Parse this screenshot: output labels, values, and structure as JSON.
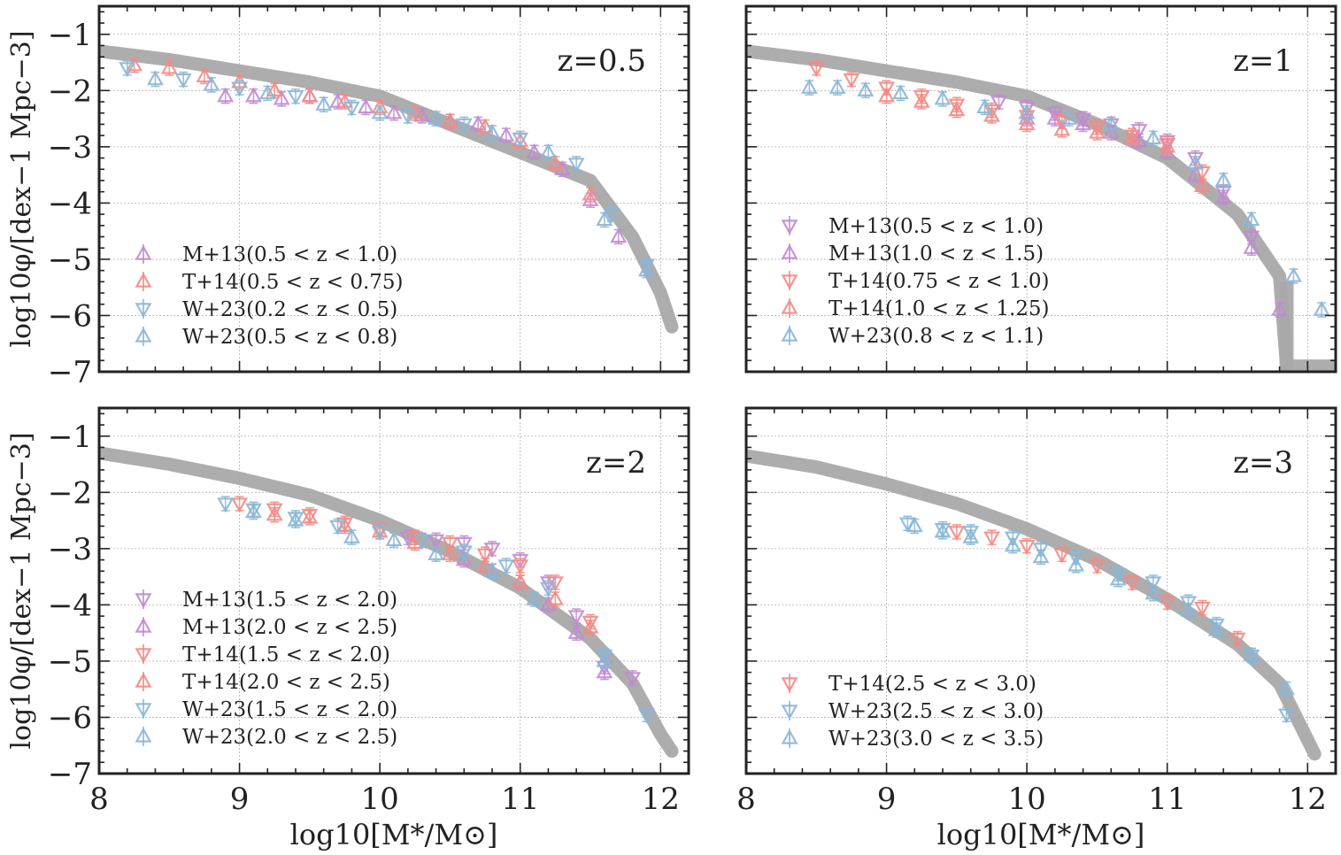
{
  "colors": {
    "M+13": "#c08bd0",
    "T+14": "#f48a84",
    "W+23": "#8ab6d6",
    "model": "#a9a9a9",
    "axes": "#222222",
    "grid": "#b0b0b0"
  },
  "shared": {
    "xlabel": "log10[M*/M⊙]",
    "ylabel": "log10φ/[dex−1 Mpc−3]",
    "xlim": [
      8,
      12.2
    ],
    "ylim": [
      -7,
      -0.5
    ],
    "xticks": [
      8,
      9,
      10,
      11,
      12
    ],
    "yticks": [
      -1,
      -2,
      -3,
      -4,
      -5,
      -6,
      -7
    ]
  },
  "chart_data": [
    {
      "type": "scatter",
      "title": "z=0.5",
      "model": {
        "x": [
          8.0,
          8.5,
          9.0,
          9.5,
          10.0,
          10.5,
          11.0,
          11.5,
          11.8,
          12.0,
          12.08
        ],
        "y": [
          -1.3,
          -1.45,
          -1.65,
          -1.85,
          -2.1,
          -2.6,
          -3.1,
          -3.6,
          -4.6,
          -5.6,
          -6.2
        ]
      },
      "series": [
        {
          "name": "M+13(0.5 < z < 1.0)",
          "survey": "M+13",
          "marker": "up",
          "x": [
            8.9,
            9.1,
            9.3,
            9.5,
            9.7,
            9.9,
            10.1,
            10.3,
            10.5,
            10.7,
            10.9,
            11.1,
            11.3,
            11.5,
            11.7
          ],
          "y": [
            -2.1,
            -2.1,
            -2.15,
            -2.1,
            -2.2,
            -2.3,
            -2.4,
            -2.45,
            -2.55,
            -2.6,
            -2.8,
            -3.1,
            -3.4,
            -3.95,
            -4.6
          ]
        },
        {
          "name": "T+14(0.5 < z < 0.75)",
          "survey": "T+14",
          "marker": "up",
          "x": [
            8.25,
            8.5,
            8.75,
            9.0,
            9.25,
            9.5,
            9.75,
            10.0,
            10.25,
            10.5,
            10.75,
            11.0,
            11.25,
            11.5
          ],
          "y": [
            -1.55,
            -1.6,
            -1.75,
            -1.85,
            -2.0,
            -2.1,
            -2.2,
            -2.3,
            -2.4,
            -2.55,
            -2.65,
            -2.9,
            -3.3,
            -3.85
          ]
        },
        {
          "name": "W+23(0.2 < z < 0.5)",
          "survey": "W+23",
          "marker": "down",
          "x": [
            8.2,
            8.6,
            9.0,
            9.4,
            9.8,
            10.2,
            10.6,
            11.0,
            11.4,
            11.65,
            11.9
          ],
          "y": [
            -1.6,
            -1.8,
            -1.95,
            -2.1,
            -2.3,
            -2.45,
            -2.6,
            -2.85,
            -3.3,
            -4.2,
            -5.1
          ]
        },
        {
          "name": "W+23(0.5 < z < 0.8)",
          "survey": "W+23",
          "marker": "up",
          "x": [
            8.4,
            8.8,
            9.2,
            9.6,
            10.0,
            10.4,
            10.8,
            11.2,
            11.6,
            11.9
          ],
          "y": [
            -1.8,
            -1.9,
            -2.05,
            -2.25,
            -2.4,
            -2.5,
            -2.75,
            -3.1,
            -4.3,
            -5.2
          ]
        }
      ]
    },
    {
      "type": "scatter",
      "title": "z=1",
      "model": {
        "x": [
          8.0,
          8.5,
          9.0,
          9.5,
          10.0,
          10.5,
          11.0,
          11.5,
          11.8,
          11.85,
          12.2
        ],
        "y": [
          -1.3,
          -1.45,
          -1.65,
          -1.85,
          -2.1,
          -2.6,
          -3.2,
          -4.2,
          -5.3,
          -6.9,
          -6.9
        ]
      },
      "series": [
        {
          "name": "M+13(0.5 < z < 1.0)",
          "survey": "M+13",
          "marker": "down",
          "x": [
            9.8,
            10.0,
            10.2,
            10.4,
            10.6,
            10.8,
            11.0,
            11.2,
            11.4,
            11.6
          ],
          "y": [
            -2.2,
            -2.3,
            -2.4,
            -2.5,
            -2.6,
            -2.7,
            -2.9,
            -3.2,
            -3.8,
            -4.6
          ]
        },
        {
          "name": "M+13(1.0 < z < 1.5)",
          "survey": "M+13",
          "marker": "up",
          "x": [
            10.0,
            10.2,
            10.4,
            10.6,
            10.8,
            11.0,
            11.2,
            11.4,
            11.6,
            11.8
          ],
          "y": [
            -2.5,
            -2.5,
            -2.6,
            -2.75,
            -2.9,
            -3.1,
            -3.5,
            -3.9,
            -4.8,
            -5.9
          ]
        },
        {
          "name": "T+14(0.75 < z < 1.0)",
          "survey": "T+14",
          "marker": "down",
          "x": [
            8.5,
            8.75,
            9.0,
            9.25,
            9.5,
            9.75,
            10.0,
            10.25,
            10.5,
            10.75,
            11.0,
            11.25
          ],
          "y": [
            -1.6,
            -1.8,
            -1.95,
            -2.1,
            -2.25,
            -2.35,
            -2.45,
            -2.55,
            -2.65,
            -2.8,
            -2.95,
            -3.45
          ]
        },
        {
          "name": "T+14(1.0 < z < 1.25)",
          "survey": "T+14",
          "marker": "up",
          "x": [
            9.0,
            9.25,
            9.5,
            9.75,
            10.0,
            10.25,
            10.5,
            10.75,
            11.0,
            11.25
          ],
          "y": [
            -2.1,
            -2.2,
            -2.35,
            -2.45,
            -2.6,
            -2.7,
            -2.75,
            -2.85,
            -3.0,
            -3.7
          ]
        },
        {
          "name": "W+23(0.8 < z < 1.1)",
          "survey": "W+23",
          "marker": "up",
          "x": [
            8.45,
            8.65,
            8.85,
            9.1,
            9.4,
            9.7,
            10.0,
            10.3,
            10.6,
            10.9,
            11.2,
            11.4,
            11.6,
            11.9,
            12.1
          ],
          "y": [
            -1.95,
            -1.95,
            -2.0,
            -2.05,
            -2.15,
            -2.3,
            -2.4,
            -2.5,
            -2.6,
            -2.85,
            -3.3,
            -3.6,
            -4.3,
            -5.3,
            -5.9
          ]
        }
      ]
    },
    {
      "type": "scatter",
      "title": "z=2",
      "model": {
        "x": [
          8.0,
          8.5,
          9.0,
          9.5,
          10.0,
          10.5,
          11.0,
          11.5,
          11.8,
          12.0,
          12.08
        ],
        "y": [
          -1.3,
          -1.5,
          -1.75,
          -2.05,
          -2.5,
          -3.05,
          -3.7,
          -4.6,
          -5.4,
          -6.3,
          -6.6
        ]
      },
      "series": [
        {
          "name": "M+13(1.5 < z < 2.0)",
          "survey": "M+13",
          "marker": "down",
          "x": [
            10.2,
            10.4,
            10.6,
            10.8,
            11.0,
            11.2,
            11.4,
            11.6,
            11.8
          ],
          "y": [
            -2.8,
            -2.85,
            -2.9,
            -3.0,
            -3.2,
            -3.6,
            -4.2,
            -5.1,
            -5.3
          ]
        },
        {
          "name": "M+13(2.0 < z < 2.5)",
          "survey": "M+13",
          "marker": "up",
          "x": [
            10.6,
            10.8,
            11.0,
            11.2,
            11.4,
            11.6
          ],
          "y": [
            -3.2,
            -3.4,
            -3.6,
            -4.0,
            -4.5,
            -5.2
          ]
        },
        {
          "name": "T+14(1.5 < z < 2.0)",
          "survey": "T+14",
          "marker": "down",
          "x": [
            9.0,
            9.25,
            9.5,
            9.75,
            10.0,
            10.25,
            10.5,
            10.75,
            11.0,
            11.25,
            11.5
          ],
          "y": [
            -2.2,
            -2.3,
            -2.4,
            -2.55,
            -2.65,
            -2.8,
            -2.9,
            -3.1,
            -3.3,
            -3.6,
            -4.3
          ]
        },
        {
          "name": "T+14(2.0 < z < 2.5)",
          "survey": "T+14",
          "marker": "up",
          "x": [
            9.25,
            9.5,
            9.75,
            10.0,
            10.25,
            10.5,
            10.75,
            11.0,
            11.25,
            11.5
          ],
          "y": [
            -2.4,
            -2.45,
            -2.6,
            -2.7,
            -2.9,
            -3.1,
            -3.3,
            -3.6,
            -3.9,
            -4.4
          ]
        },
        {
          "name": "W+23(1.5 < z < 2.0)",
          "survey": "W+23",
          "marker": "down",
          "x": [
            8.9,
            9.1,
            9.4,
            9.7,
            10.0,
            10.3,
            10.6,
            10.9,
            11.2,
            11.6,
            11.9
          ],
          "y": [
            -2.2,
            -2.3,
            -2.45,
            -2.6,
            -2.7,
            -2.85,
            -3.05,
            -3.3,
            -3.7,
            -4.9,
            -5.95
          ]
        },
        {
          "name": "W+23(2.0 < z < 2.5)",
          "survey": "W+23",
          "marker": "up",
          "x": [
            9.1,
            9.4,
            9.8,
            10.1,
            10.4,
            10.8,
            11.1,
            11.6
          ],
          "y": [
            -2.35,
            -2.5,
            -2.8,
            -2.85,
            -3.1,
            -3.4,
            -3.9,
            -5.0
          ]
        }
      ]
    },
    {
      "type": "scatter",
      "title": "z=3",
      "model": {
        "x": [
          8.0,
          8.5,
          9.0,
          9.5,
          10.0,
          10.5,
          11.0,
          11.5,
          11.8,
          12.0,
          12.05
        ],
        "y": [
          -1.35,
          -1.55,
          -1.85,
          -2.2,
          -2.65,
          -3.2,
          -3.9,
          -4.7,
          -5.4,
          -6.4,
          -6.65
        ]
      },
      "series": [
        {
          "name": "T+14(2.5 < z < 3.0)",
          "survey": "T+14",
          "marker": "down",
          "x": [
            9.5,
            9.75,
            10.0,
            10.25,
            10.5,
            10.75,
            11.0,
            11.25,
            11.5
          ],
          "y": [
            -2.7,
            -2.8,
            -2.95,
            -3.1,
            -3.3,
            -3.6,
            -3.95,
            -4.05,
            -4.6
          ]
        },
        {
          "name": "W+23(2.5 < z < 3.0)",
          "survey": "W+23",
          "marker": "down",
          "x": [
            9.15,
            9.4,
            9.6,
            9.9,
            10.1,
            10.35,
            10.65,
            10.9,
            11.15,
            11.35,
            11.6,
            11.85
          ],
          "y": [
            -2.55,
            -2.65,
            -2.7,
            -2.8,
            -3.0,
            -3.15,
            -3.45,
            -3.6,
            -3.95,
            -4.35,
            -4.9,
            -5.95
          ]
        },
        {
          "name": "W+23(3.0 < z < 3.5)",
          "survey": "W+23",
          "marker": "up",
          "x": [
            9.2,
            9.4,
            9.6,
            9.9,
            10.1,
            10.35,
            10.65,
            10.9,
            11.15,
            11.35,
            11.6,
            11.85
          ],
          "y": [
            -2.6,
            -2.7,
            -2.8,
            -2.95,
            -3.15,
            -3.3,
            -3.55,
            -3.8,
            -4.1,
            -4.45,
            -4.9,
            -5.5
          ]
        }
      ]
    }
  ]
}
